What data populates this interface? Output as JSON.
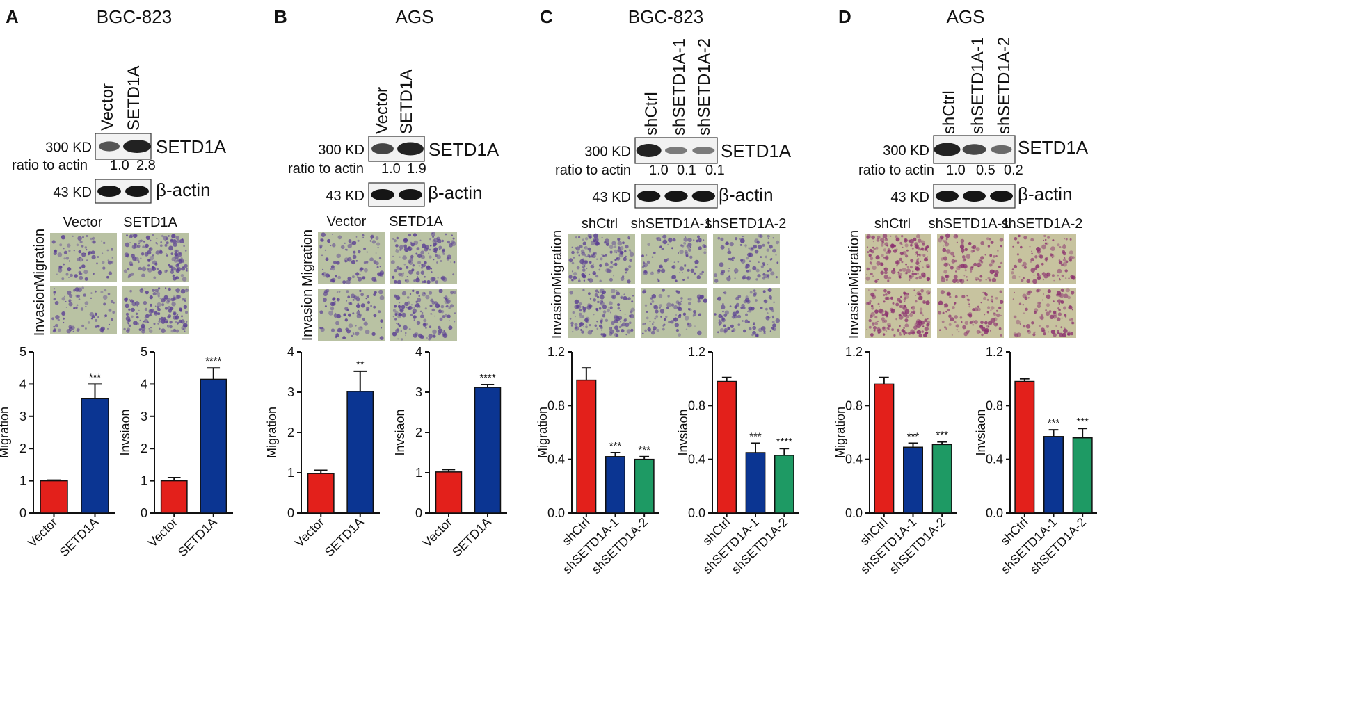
{
  "colors": {
    "red": "#e3201b",
    "blue": "#0b3592",
    "green": "#1e9a64",
    "micro_bg": "#b9c2a3",
    "micro_bg_pink": "#c7c39f",
    "stain": "#5a3f93"
  },
  "panels": [
    {
      "letter": "A",
      "cell_line": "BGC-823",
      "blot": {
        "lanes": [
          "Vector",
          "SETD1A"
        ],
        "target_mw": "300 KD",
        "target": "SETD1A",
        "ratio_label": "ratio to actin",
        "ratios": [
          "1.0",
          "2.8"
        ],
        "actin_mw": "43 KD",
        "actin": "β-actin"
      },
      "micro": {
        "cols": [
          "Vector",
          "SETD1A"
        ],
        "rows": [
          "Migration",
          "Invasion"
        ]
      }
    },
    {
      "letter": "B",
      "cell_line": "AGS",
      "blot": {
        "lanes": [
          "Vector",
          "SETD1A"
        ],
        "target_mw": "300 KD",
        "target": "SETD1A",
        "ratio_label": "ratio to actin",
        "ratios": [
          "1.0",
          "1.9"
        ],
        "actin_mw": "43 KD",
        "actin": "β-actin"
      },
      "micro": {
        "cols": [
          "Vector",
          "SETD1A"
        ],
        "rows": [
          "Migration",
          "Invasion"
        ]
      }
    },
    {
      "letter": "C",
      "cell_line": "BGC-823",
      "blot": {
        "lanes": [
          "shCtrl",
          "shSETD1A-1",
          "shSETD1A-2"
        ],
        "target_mw": "300 KD",
        "target": "SETD1A",
        "ratio_label": "ratio to actin",
        "ratios": [
          "1.0",
          "0.1",
          "0.1"
        ],
        "actin_mw": "43 KD",
        "actin": "β-actin"
      },
      "micro": {
        "cols": [
          "shCtrl",
          "shSETD1A-1",
          "shSETD1A-2"
        ],
        "rows": [
          "Migration",
          "Invasion"
        ]
      }
    },
    {
      "letter": "D",
      "cell_line": "AGS",
      "blot": {
        "lanes": [
          "shCtrl",
          "shSETD1A-1",
          "shSETD1A-2"
        ],
        "target_mw": "300 KD",
        "target": "SETD1A",
        "ratio_label": "ratio to actin",
        "ratios": [
          "1.0",
          "0.5",
          "0.2"
        ],
        "actin_mw": "43 KD",
        "actin": "β-actin"
      },
      "micro": {
        "cols": [
          "shCtrl",
          "shSETD1A-1",
          "shSETD1A-2"
        ],
        "rows": [
          "Migration",
          "Invasion"
        ]
      }
    }
  ],
  "chart_data": [
    {
      "panel": "A",
      "type": "bar",
      "ylabel": "Migration",
      "ylim": [
        0,
        5
      ],
      "yticks": [
        "0",
        "1",
        "2",
        "3",
        "4",
        "5"
      ],
      "categories": [
        "Vector",
        "SETD1A"
      ],
      "values": [
        1.0,
        3.55
      ],
      "errors": [
        0.02,
        0.45
      ],
      "significance": [
        "",
        "***"
      ],
      "bar_colors": [
        "#e3201b",
        "#0b3592"
      ]
    },
    {
      "panel": "A",
      "type": "bar",
      "ylabel": "Invsiaon",
      "ylim": [
        0,
        5
      ],
      "yticks": [
        "0",
        "1",
        "2",
        "3",
        "4",
        "5"
      ],
      "categories": [
        "Vector",
        "SETD1A"
      ],
      "values": [
        1.0,
        4.15
      ],
      "errors": [
        0.1,
        0.35
      ],
      "significance": [
        "",
        "****"
      ],
      "bar_colors": [
        "#e3201b",
        "#0b3592"
      ]
    },
    {
      "panel": "B",
      "type": "bar",
      "ylabel": "Migration",
      "ylim": [
        0,
        4
      ],
      "yticks": [
        "0",
        "1",
        "2",
        "3",
        "4"
      ],
      "categories": [
        "Vector",
        "SETD1A"
      ],
      "values": [
        0.98,
        3.02
      ],
      "errors": [
        0.08,
        0.5
      ],
      "significance": [
        "",
        "**"
      ],
      "bar_colors": [
        "#e3201b",
        "#0b3592"
      ]
    },
    {
      "panel": "B",
      "type": "bar",
      "ylabel": "Invsiaon",
      "ylim": [
        0,
        4
      ],
      "yticks": [
        "0",
        "1",
        "2",
        "3",
        "4"
      ],
      "categories": [
        "Vector",
        "SETD1A"
      ],
      "values": [
        1.02,
        3.12
      ],
      "errors": [
        0.06,
        0.07
      ],
      "significance": [
        "",
        "****"
      ],
      "bar_colors": [
        "#e3201b",
        "#0b3592"
      ]
    },
    {
      "panel": "C",
      "type": "bar",
      "ylabel": "Migration",
      "ylim": [
        0,
        1.2
      ],
      "yticks": [
        "0.0",
        "0.4",
        "0.8",
        "1.2"
      ],
      "categories": [
        "shCtrl",
        "shSETD1A-1",
        "shSETD1A-2"
      ],
      "values": [
        0.99,
        0.42,
        0.4
      ],
      "errors": [
        0.09,
        0.03,
        0.02
      ],
      "significance": [
        "",
        "***",
        "***"
      ],
      "bar_colors": [
        "#e3201b",
        "#0b3592",
        "#1e9a64"
      ]
    },
    {
      "panel": "C",
      "type": "bar",
      "ylabel": "Invsiaon",
      "ylim": [
        0,
        1.2
      ],
      "yticks": [
        "0.0",
        "0.4",
        "0.8",
        "1.2"
      ],
      "categories": [
        "shCtrl",
        "shSETD1A-1",
        "shSETD1A-2"
      ],
      "values": [
        0.98,
        0.45,
        0.43
      ],
      "errors": [
        0.03,
        0.07,
        0.05
      ],
      "significance": [
        "",
        "***",
        "****"
      ],
      "bar_colors": [
        "#e3201b",
        "#0b3592",
        "#1e9a64"
      ]
    },
    {
      "panel": "D",
      "type": "bar",
      "ylabel": "Migration",
      "ylim": [
        0,
        1.2
      ],
      "yticks": [
        "0.0",
        "0.4",
        "0.8",
        "1.2"
      ],
      "categories": [
        "shCtrl",
        "shSETD1A-1",
        "shSETD1A-2"
      ],
      "values": [
        0.96,
        0.49,
        0.51
      ],
      "errors": [
        0.05,
        0.03,
        0.02
      ],
      "significance": [
        "",
        "***",
        "***"
      ],
      "bar_colors": [
        "#e3201b",
        "#0b3592",
        "#1e9a64"
      ]
    },
    {
      "panel": "D",
      "type": "bar",
      "ylabel": "Invsiaon",
      "ylim": [
        0,
        1.2
      ],
      "yticks": [
        "0.0",
        "0.4",
        "0.8",
        "1.2"
      ],
      "categories": [
        "shCtrl",
        "shSETD1A-1",
        "shSETD1A-2"
      ],
      "values": [
        0.98,
        0.57,
        0.56
      ],
      "errors": [
        0.02,
        0.05,
        0.07
      ],
      "significance": [
        "",
        "***",
        "***"
      ],
      "bar_colors": [
        "#e3201b",
        "#0b3592",
        "#1e9a64"
      ]
    }
  ]
}
